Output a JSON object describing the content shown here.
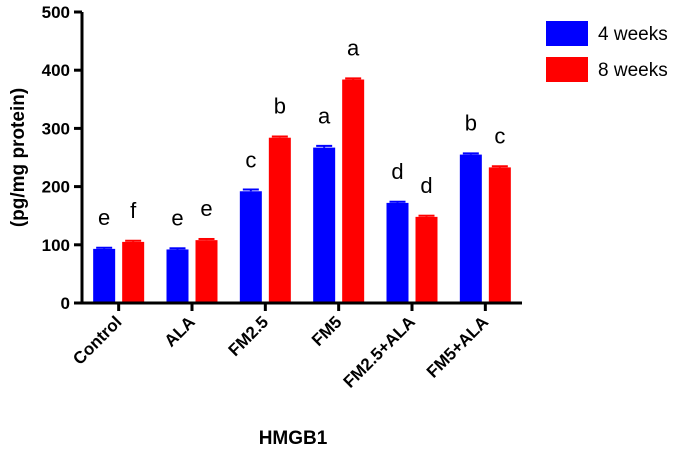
{
  "chart_data": {
    "type": "bar",
    "title": "",
    "xlabel": "HMGB1",
    "ylabel": "(pg/mg protein)",
    "ylim": [
      0,
      500
    ],
    "yticks": [
      0,
      100,
      200,
      300,
      400,
      500
    ],
    "categories": [
      "Control",
      "ALA",
      "FM2.5",
      "FM5",
      "FM2.5+ALA",
      "FM5+ALA"
    ],
    "series": [
      {
        "name": "4 weeks",
        "color": "#0000ff",
        "values": [
          93,
          92,
          192,
          267,
          172,
          255
        ],
        "errors": [
          2,
          2,
          3,
          3,
          2,
          2
        ],
        "labels": [
          "e",
          "e",
          "c",
          "a",
          "d",
          "b"
        ]
      },
      {
        "name": "8 weeks",
        "color": "#ff0000",
        "values": [
          105,
          108,
          284,
          384,
          148,
          233
        ],
        "errors": [
          2,
          2,
          2,
          2,
          2,
          2
        ],
        "labels": [
          "f",
          "e",
          "b",
          "a",
          "d",
          "c"
        ]
      }
    ],
    "legend": "top-right",
    "grid": false
  }
}
